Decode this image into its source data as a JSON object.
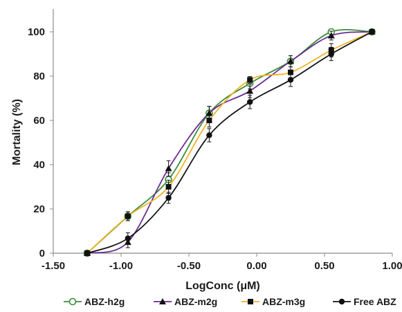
{
  "chart_data": {
    "type": "line",
    "title": "",
    "xlabel": "LogConc (μM)",
    "ylabel": "Mortality (%)",
    "xlim": [
      -1.5,
      1.0
    ],
    "ylim": [
      0,
      100
    ],
    "x_ticks": [
      -1.5,
      -1.0,
      -0.5,
      0.0,
      0.5,
      1.0
    ],
    "x_tick_labels": [
      "-1.50",
      "-1.00",
      "-0.50",
      "0.00",
      "0.50",
      "1.00"
    ],
    "y_ticks": [
      0,
      20,
      40,
      60,
      80,
      100
    ],
    "y_tick_labels": [
      "0",
      "20",
      "40",
      "60",
      "80",
      "100"
    ],
    "grid": false,
    "legend_position": "bottom",
    "curve": "smoothed",
    "series": [
      {
        "name": "ABZ-h2g",
        "color": "#3a8c3a",
        "marker": "open-circle",
        "x": [
          -1.25,
          -0.95,
          -0.65,
          -0.35,
          -0.05,
          0.25,
          0.55,
          0.85
        ],
        "y": [
          0,
          16.7,
          33.3,
          63.3,
          76.7,
          86.7,
          100,
          100
        ],
        "err": [
          0,
          2,
          3,
          3,
          2.5,
          2.5,
          0,
          0
        ]
      },
      {
        "name": "ABZ-m2g",
        "color": "#6a2c91",
        "marker": "filled-triangle",
        "x": [
          -1.25,
          -0.95,
          -0.65,
          -0.35,
          -0.05,
          0.25,
          0.55,
          0.85
        ],
        "y": [
          0,
          5,
          38.3,
          63.3,
          73.3,
          86.7,
          98.3,
          100
        ],
        "err": [
          0,
          2.5,
          3.5,
          3,
          3,
          2.5,
          2,
          0
        ]
      },
      {
        "name": "ABZ-m3g",
        "color": "#f0b323",
        "marker": "filled-square",
        "x": [
          -1.25,
          -0.95,
          -0.65,
          -0.35,
          -0.05,
          0.25,
          0.55,
          0.85
        ],
        "y": [
          0,
          16.7,
          30,
          60,
          78.3,
          81.7,
          91.7,
          100
        ],
        "err": [
          0,
          2,
          3,
          3,
          1.5,
          2.5,
          3,
          0
        ]
      },
      {
        "name": "Free ABZ",
        "color": "#111111",
        "marker": "filled-circle",
        "x": [
          -1.25,
          -0.95,
          -0.65,
          -0.35,
          -0.05,
          0.25,
          0.55,
          0.85
        ],
        "y": [
          0,
          6.7,
          25,
          53.3,
          68.3,
          78.3,
          90,
          100
        ],
        "err": [
          0,
          2.5,
          2.5,
          3,
          3,
          3,
          3,
          0
        ]
      }
    ]
  }
}
